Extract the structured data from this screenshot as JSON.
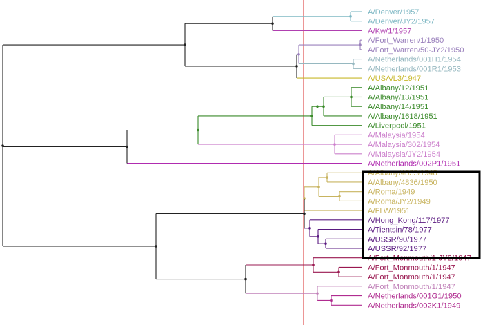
{
  "tree": {
    "colors": {
      "root": "#222222",
      "marker_line": "#e05050",
      "highlight_box": "#000000",
      "denver": "#7fb8c4",
      "kw": "#b040b0",
      "fort_warren": "#9a80bc",
      "netherlands_h1": "#96b8c0",
      "usa": "#c8b82a",
      "albany": "#3a8a2a",
      "malaysia": "#cc80cc",
      "netherlands_p1": "#b02cb0",
      "albany_old": "#c8b460",
      "hong_kong": "#5a1a80",
      "fort_monmouth": "#9a1850",
      "fort_monmouth_light": "#c080b8",
      "netherlands_late": "#b02c90"
    },
    "leaves": [
      {
        "label": "A/Denver/1957",
        "color": "#7fb8c4"
      },
      {
        "label": "A/Denver/JY2/1957",
        "color": "#7fb8c4"
      },
      {
        "label": "A/Kw/1/1957",
        "color": "#b040b0"
      },
      {
        "label": "A/Fort_Warren/1/1950",
        "color": "#9a80bc"
      },
      {
        "label": "A/Fort_Warren/50-JY2/1950",
        "color": "#9a80bc"
      },
      {
        "label": "A/Netherlands/001H1/1954",
        "color": "#96b8c0"
      },
      {
        "label": "A/Netherlands/001R1/1953",
        "color": "#96b8c0"
      },
      {
        "label": "A/USA/L3/1947",
        "color": "#c8b82a"
      },
      {
        "label": "A/Albany/12/1951",
        "color": "#3a8a2a"
      },
      {
        "label": "A/Albany/13/1951",
        "color": "#3a8a2a"
      },
      {
        "label": "A/Albany/14/1951",
        "color": "#3a8a2a"
      },
      {
        "label": "A/Albany/1618/1951",
        "color": "#3a8a2a"
      },
      {
        "label": "A/Liverpool/1951",
        "color": "#3a8a2a"
      },
      {
        "label": "A/Malaysia/1954",
        "color": "#cc80cc"
      },
      {
        "label": "A/Malaysia/302/1954",
        "color": "#cc80cc"
      },
      {
        "label": "A/Malaysia/JY2/1954",
        "color": "#cc80cc"
      },
      {
        "label": "A/Netherlands/002P1/1951",
        "color": "#b02cb0"
      },
      {
        "label": "A/Albany/4835/1948",
        "color": "#c8b460"
      },
      {
        "label": "A/Albany/4836/1950",
        "color": "#c8b460"
      },
      {
        "label": "A/Roma/1949",
        "color": "#c8b460"
      },
      {
        "label": "A/Roma/JY2/1949",
        "color": "#c8b460"
      },
      {
        "label": "A/FLW/1951",
        "color": "#c8b460"
      },
      {
        "label": "A/Hong_Kong/117/1977",
        "color": "#5a1a80"
      },
      {
        "label": "A/Tientsin/78/1977",
        "color": "#5a1a80"
      },
      {
        "label": "A/USSR/90/1977",
        "color": "#5a1a80"
      },
      {
        "label": "A/USSR/92/1977",
        "color": "#5a1a80"
      },
      {
        "label": "A/Fort_Monmouth/1-JY2/1947",
        "color": "#9a1850"
      },
      {
        "label": "A/Fort_Monmouth/1/1947",
        "color": "#9a1850"
      },
      {
        "label": "A/Fort_Monmouth/1/1947",
        "color": "#9a1850"
      },
      {
        "label": "A/Fort_Monmouth/1/1947",
        "color": "#c080b8"
      },
      {
        "label": "A/Netherlands/001G1/1950",
        "color": "#b02c90"
      },
      {
        "label": "A/Netherlands/002K1/1949",
        "color": "#b02c90"
      }
    ]
  }
}
